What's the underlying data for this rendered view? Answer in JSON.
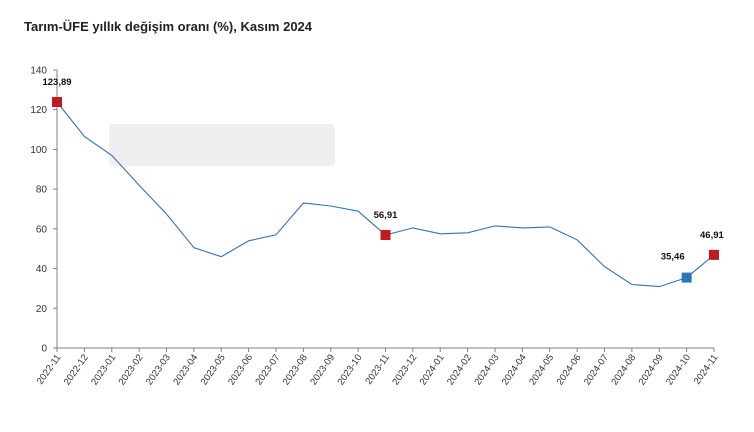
{
  "title": "Tarım-ÜFE yıllık değişim oranı (%), Kasım 2024",
  "colors": {
    "line": "#2e75b6",
    "highlight_red": "#c0191f",
    "highlight_blue": "#2e75b6",
    "axis": "#7f7f7f",
    "overlay": "#efefef"
  },
  "chart_data": {
    "type": "line",
    "title": "Tarım-ÜFE yıllık değişim oranı (%), Kasım 2024",
    "xlabel": "",
    "ylabel": "",
    "ylim": [
      0,
      140
    ],
    "yticks": [
      0,
      20,
      40,
      60,
      80,
      100,
      120,
      140
    ],
    "grid": false,
    "categories": [
      "2022-11",
      "2022-12",
      "2023-01",
      "2023-02",
      "2023-03",
      "2023-04",
      "2023-05",
      "2023-06",
      "2023-07",
      "2023-08",
      "2023-09",
      "2023-10",
      "2023-11",
      "2023-12",
      "2024-01",
      "2024-02",
      "2024-03",
      "2024-04",
      "2024-05",
      "2024-06",
      "2024-07",
      "2024-08",
      "2024-09",
      "2024-10",
      "2024-11"
    ],
    "series": [
      {
        "values": [
          123.89,
          106.5,
          97.0,
          82.0,
          67.5,
          50.5,
          46.0,
          54.0,
          57.0,
          73.0,
          71.5,
          68.9,
          56.91,
          60.5,
          57.5,
          58.0,
          61.5,
          60.5,
          61.0,
          54.5,
          41.0,
          32.0,
          30.9,
          35.46,
          46.91
        ]
      }
    ],
    "highlights": [
      {
        "category": "2022-11",
        "value": 123.89,
        "label": "123,89",
        "color": "red"
      },
      {
        "category": "2023-11",
        "value": 56.91,
        "label": "56,91",
        "color": "red"
      },
      {
        "category": "2024-10",
        "value": 35.46,
        "label": "35,46",
        "color": "blue"
      },
      {
        "category": "2024-11",
        "value": 46.91,
        "label": "46,91",
        "color": "red"
      }
    ]
  }
}
